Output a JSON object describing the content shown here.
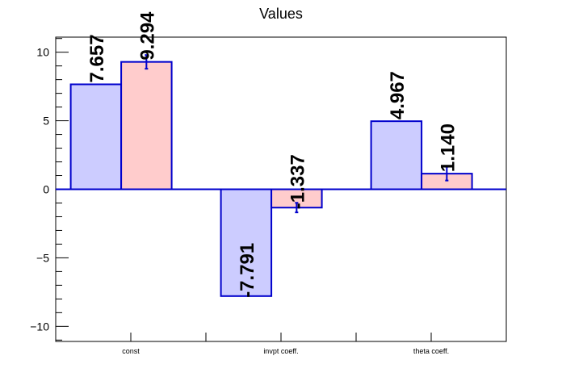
{
  "chart_data": {
    "type": "bar",
    "title": "Values",
    "xlabel": "",
    "ylabel": "",
    "categories": [
      "const",
      "invpt coeff.",
      "theta coeff."
    ],
    "series": [
      {
        "values": [
          7.657,
          -7.791,
          4.967
        ],
        "labels": [
          "7.657",
          "-7.791",
          "4.967"
        ],
        "color": "#ccccff"
      },
      {
        "values": [
          9.294,
          -1.337,
          1.14
        ],
        "labels": [
          "9.294",
          "-1.337",
          "1.140"
        ],
        "color": "#ffcccc",
        "errors": [
          0.5,
          0.35,
          0.5
        ]
      }
    ],
    "ylim": [
      -11.1,
      11.1
    ],
    "yticks": [
      -10,
      -5,
      0,
      5,
      10
    ],
    "ytick_labels": [
      "−10",
      "−5",
      "0",
      "5",
      "10"
    ],
    "edge_color": "#0000cc",
    "grid": false,
    "legend": "none"
  }
}
